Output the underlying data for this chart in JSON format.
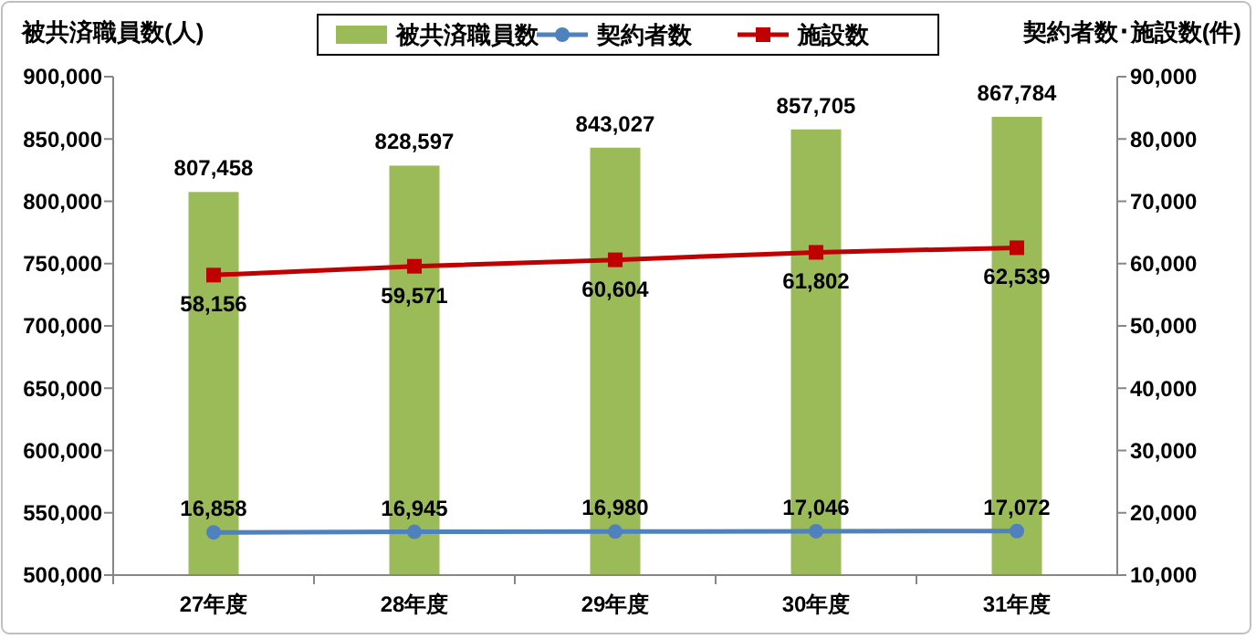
{
  "chart_data": {
    "type": "bar",
    "ylabel": "被共済職員数(人)",
    "y2label": "契約者数･施設数(件)",
    "categories": [
      "27年度",
      "28年度",
      "29年度",
      "30年度",
      "31年度"
    ],
    "series": [
      {
        "name": "被共済職員数",
        "color": "#9bbb59",
        "values": [
          807458,
          828597,
          843027,
          857705,
          867784
        ],
        "value_labels": [
          "807,458",
          "828,597",
          "843,027",
          "857,705",
          "867,784"
        ]
      },
      {
        "name": "契約者数",
        "type": "line",
        "axis": "y2",
        "color": "#4f81bd",
        "marker": "circle",
        "values": [
          16858,
          16945,
          16980,
          17046,
          17072
        ],
        "value_labels": [
          "16,858",
          "16,945",
          "16,980",
          "17,046",
          "17,072"
        ]
      },
      {
        "name": "施設数",
        "type": "line",
        "axis": "y2",
        "color": "#c00000",
        "marker": "square",
        "values": [
          58156,
          59571,
          60604,
          61802,
          62539
        ],
        "value_labels": [
          "58,156",
          "59,571",
          "60,604",
          "61,802",
          "62,539"
        ]
      }
    ],
    "ylim": [
      500000,
      900000
    ],
    "yticks": [
      {
        "value": 500000,
        "label": "500,000"
      },
      {
        "value": 550000,
        "label": "550,000"
      },
      {
        "value": 600000,
        "label": "600,000"
      },
      {
        "value": 650000,
        "label": "650,000"
      },
      {
        "value": 700000,
        "label": "700,000"
      },
      {
        "value": 750000,
        "label": "750,000"
      },
      {
        "value": 800000,
        "label": "800,000"
      },
      {
        "value": 850000,
        "label": "850,000"
      },
      {
        "value": 900000,
        "label": "900,000"
      }
    ],
    "y2lim": [
      10000,
      90000
    ],
    "y2ticks": [
      {
        "value": 10000,
        "label": "10,000"
      },
      {
        "value": 20000,
        "label": "20,000"
      },
      {
        "value": 30000,
        "label": "30,000"
      },
      {
        "value": 40000,
        "label": "40,000"
      },
      {
        "value": 50000,
        "label": "50,000"
      },
      {
        "value": 60000,
        "label": "60,000"
      },
      {
        "value": 70000,
        "label": "70,000"
      },
      {
        "value": 80000,
        "label": "80,000"
      },
      {
        "value": 90000,
        "label": "90,000"
      }
    ],
    "legend": "top",
    "grid": false
  }
}
